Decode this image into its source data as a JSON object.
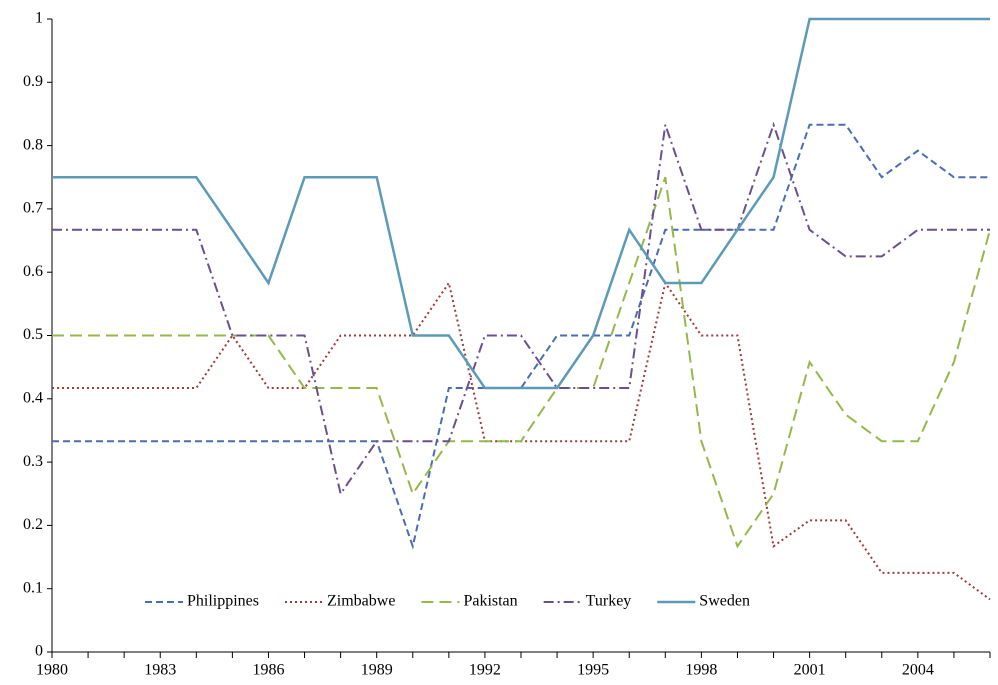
{
  "chart_data": {
    "type": "line",
    "categories": [
      "1980",
      null,
      null,
      "1983",
      null,
      null,
      "1986",
      null,
      null,
      "1989",
      null,
      null,
      "1992",
      null,
      null,
      "1995",
      null,
      null,
      "1998",
      null,
      null,
      "2001",
      null,
      null,
      "2004",
      null,
      null
    ],
    "series": [
      {
        "name": "Philippines",
        "color": "#4a6cb3",
        "style": "dashed",
        "values": [
          0.333,
          0.333,
          0.333,
          0.333,
          0.333,
          0.333,
          0.333,
          0.333,
          0.333,
          0.333,
          0.167,
          0.417,
          0.417,
          0.417,
          0.5,
          0.5,
          0.5,
          0.667,
          0.667,
          0.667,
          0.667,
          0.833,
          0.833,
          0.75,
          0.792,
          0.75,
          0.75
        ]
      },
      {
        "name": "Zimbabwe",
        "color": "#9b3b3b",
        "style": "dotted",
        "values": [
          0.417,
          0.417,
          0.417,
          0.417,
          0.417,
          0.5,
          0.417,
          0.417,
          0.5,
          0.5,
          0.5,
          0.583,
          0.333,
          0.333,
          0.333,
          0.333,
          0.333,
          0.583,
          0.5,
          0.5,
          0.167,
          0.208,
          0.208,
          0.125,
          0.125,
          0.125,
          0.083
        ]
      },
      {
        "name": "Pakistan",
        "color": "#94b84a",
        "style": "longdash",
        "values": [
          0.5,
          0.5,
          0.5,
          0.5,
          0.5,
          0.5,
          0.5,
          0.417,
          0.417,
          0.417,
          0.25,
          0.333,
          0.333,
          0.333,
          0.417,
          0.417,
          0.583,
          0.75,
          0.333,
          0.167,
          0.25,
          0.458,
          0.375,
          0.333,
          0.333,
          0.458,
          0.667
        ]
      },
      {
        "name": "Turkey",
        "color": "#6a4f8f",
        "style": "dashdot",
        "values": [
          0.667,
          0.667,
          0.667,
          0.667,
          0.667,
          0.5,
          0.5,
          0.5,
          0.25,
          0.333,
          0.333,
          0.333,
          0.5,
          0.5,
          0.417,
          0.417,
          0.417,
          0.833,
          0.667,
          0.667,
          0.833,
          0.667,
          0.625,
          0.625,
          0.667,
          0.667,
          0.667
        ]
      },
      {
        "name": "Sweden",
        "color": "#5b9ab8",
        "style": "solid",
        "values": [
          0.75,
          0.75,
          0.75,
          0.75,
          0.75,
          0.667,
          0.583,
          0.75,
          0.75,
          0.75,
          0.5,
          0.5,
          0.417,
          0.417,
          0.417,
          0.5,
          0.667,
          0.583,
          0.583,
          0.667,
          0.75,
          1,
          1,
          1,
          1,
          1,
          1
        ]
      }
    ],
    "ylim": [
      0,
      1
    ],
    "yticks": [
      0,
      0.1,
      0.2,
      0.3,
      0.4,
      0.5,
      0.6,
      0.7,
      0.8,
      0.9,
      1
    ],
    "grid": false,
    "legend": "bottom"
  }
}
